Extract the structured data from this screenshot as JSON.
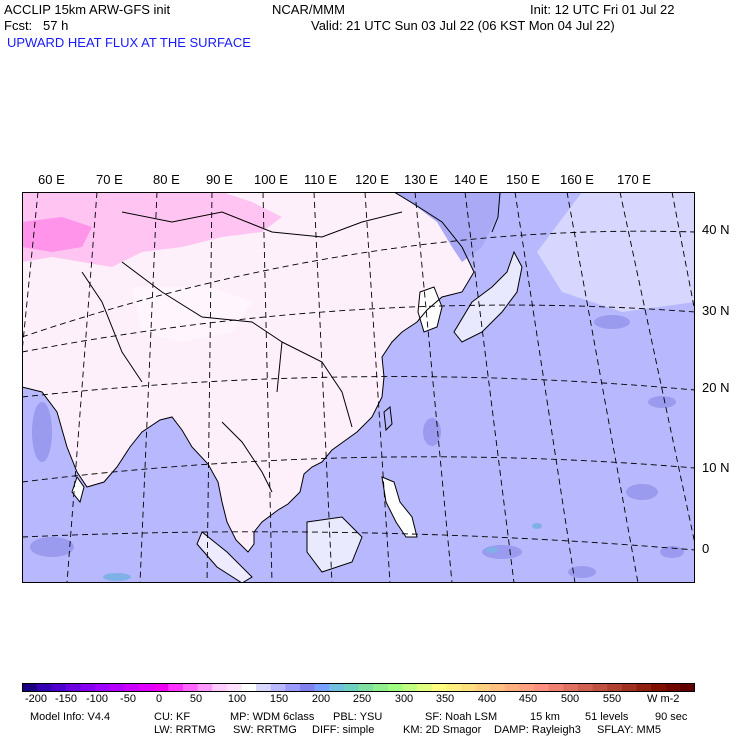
{
  "header": {
    "model": "ACCLIP 15km ARW-GFS init",
    "org": "NCAR/MMM",
    "init": "Init: 12 UTC Fri 01 Jul 22",
    "fcst": "Fcst:   57 h",
    "valid": "Valid: 21 UTC Sun 03 Jul 22 (06 KST Mon 04 Jul 22)",
    "field": "UPWARD HEAT FLUX AT THE SURFACE"
  },
  "map": {
    "lon_labels": [
      "60 E",
      "70 E",
      "80 E",
      "90 E",
      "100 E",
      "110 E",
      "120 E",
      "130 E",
      "140 E",
      "150 E",
      "160 E",
      "170 E"
    ],
    "lat_labels": [
      "40 N",
      "30 N",
      "20 N",
      "10 N",
      "0"
    ],
    "colors": {
      "land_positive": "#ffffff",
      "land_negative_light": "#ffd6f5",
      "land_negative_strong": "#ff80e6",
      "ocean_negative": "#b8b8ff",
      "ocean_darker": "#9a9aee",
      "flux_50": "#8fd6c8",
      "coastline": "#000000",
      "gridline": "#000000"
    }
  },
  "colorbar": {
    "labels": [
      "-200",
      "-150",
      "-100",
      "-50",
      "0",
      "50",
      "100",
      "150",
      "200",
      "250",
      "300",
      "350",
      "400",
      "450",
      "500",
      "550"
    ],
    "units": "W m-2",
    "colors": [
      "#1a0080",
      "#3300b3",
      "#4d00cc",
      "#6a00e0",
      "#8800f0",
      "#a000ff",
      "#b400ff",
      "#cc00ff",
      "#e000ff",
      "#f000f0",
      "#ff33ff",
      "#ff66ff",
      "#ff99ff",
      "#ffccff",
      "#ffe0ff",
      "#ffffff",
      "#d8d8ff",
      "#b8b8ff",
      "#9a9aff",
      "#8080ee",
      "#7aa0ff",
      "#70c0e0",
      "#70d0c0",
      "#80e0a0",
      "#90f090",
      "#a0ff80",
      "#c0ff80",
      "#e0ff80",
      "#ffff80",
      "#fff080",
      "#ffe080",
      "#ffd080",
      "#ffc080",
      "#ffb080",
      "#ffa080",
      "#ff9080",
      "#f08070",
      "#e07060",
      "#d06050",
      "#c05040",
      "#b04030",
      "#a03020",
      "#902010",
      "#801000",
      "#700800",
      "#600000"
    ]
  },
  "footer": {
    "line1": [
      "Model Info: V4.4",
      "CU: KF",
      "MP: WDM 6class",
      "PBL: YSU",
      "SF: Noah LSM",
      "15 km",
      "51 levels",
      "90 sec"
    ],
    "line2": [
      "LW: RRTMG",
      "SW: RRTMG",
      "DIFF: simple",
      "KM: 2D Smagor",
      "DAMP: Rayleigh3",
      "SFLAY: MM5"
    ]
  }
}
